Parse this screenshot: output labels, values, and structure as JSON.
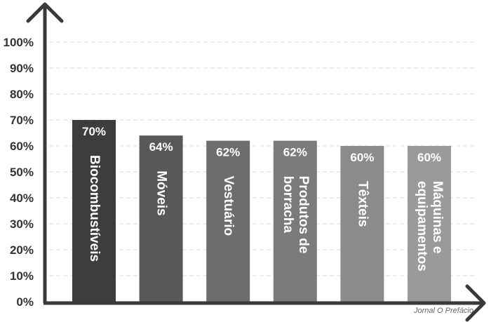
{
  "chart_data": {
    "type": "bar",
    "categories": [
      [
        "Biocombustíveis"
      ],
      [
        "Móveis"
      ],
      [
        "Vestuário"
      ],
      [
        "Produtos de",
        "borracha"
      ],
      [
        "Têxteis"
      ],
      [
        "Máquinas e",
        "equipamentos"
      ]
    ],
    "values": [
      70,
      64,
      62,
      62,
      60,
      60
    ],
    "value_labels": [
      "70%",
      "64%",
      "62%",
      "62%",
      "60%",
      "60%"
    ],
    "bar_colors": [
      "#3d3d3f",
      "#58585a",
      "#6d6d6f",
      "#7b7b7d",
      "#8b8b8d",
      "#9a9a9c"
    ],
    "y_ticks": [
      "0%",
      "10%",
      "20%",
      "30%",
      "40%",
      "50%",
      "60%",
      "70%",
      "80%",
      "90%",
      "100%"
    ],
    "ylim": [
      0,
      100
    ],
    "grid": true,
    "title": "",
    "xlabel": "",
    "ylabel": ""
  },
  "credit": "Jornal O Prefácio",
  "colors": {
    "axis": "#3a3a3c",
    "grid": "#d9d9d9",
    "text": "#333333"
  }
}
